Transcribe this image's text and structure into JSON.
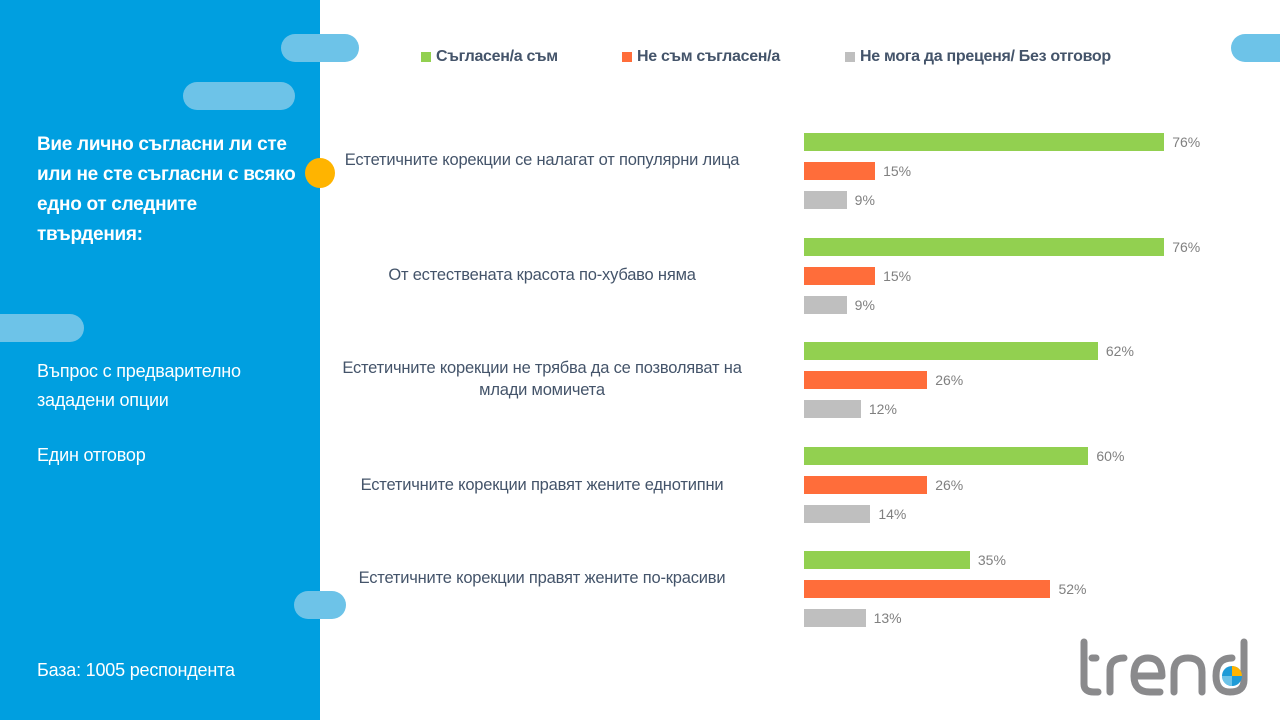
{
  "sidebar": {
    "question": "Вие лично съгласни ли сте или не сте съгласни с всяко едно от следните твърдения:",
    "question_type": "Въпрос с предварително зададени опции",
    "answer_type": "Един отговор",
    "base": "База:  1005 респондента"
  },
  "logo": {
    "text": "trend"
  },
  "colors": {
    "sidebar": "#009fe0",
    "agree": "#92d050",
    "disagree": "#ff6d3a",
    "no_answer": "#bfbfbf",
    "accent_dot": "#ffb400",
    "pill": "#6dc3e8",
    "text": "#44546a"
  },
  "chart_data": {
    "type": "bar",
    "orientation": "horizontal",
    "title": "",
    "xlabel": "",
    "ylabel": "",
    "xlim": [
      0,
      100
    ],
    "grid": false,
    "legend_position": "top",
    "categories": [
      "Естетичните корекции се налагат от популярни лица",
      "От естествената красота по-хубаво няма",
      "Естетичните корекции не трябва да се позволяват на млади момичета",
      "Естетичните корекции правят жените еднотипни",
      "Естетичните корекции правят жените по-красиви"
    ],
    "series": [
      {
        "name": "Съгласен/а съм",
        "color": "#92d050",
        "values": [
          76,
          76,
          62,
          60,
          35
        ]
      },
      {
        "name": "Не съм съгласен/а",
        "color": "#ff6d3a",
        "values": [
          15,
          15,
          26,
          26,
          52
        ]
      },
      {
        "name": "Не мога да преценя/ Без отговор",
        "color": "#bfbfbf",
        "values": [
          9,
          9,
          12,
          14,
          13
        ]
      }
    ],
    "value_suffix": "%"
  }
}
